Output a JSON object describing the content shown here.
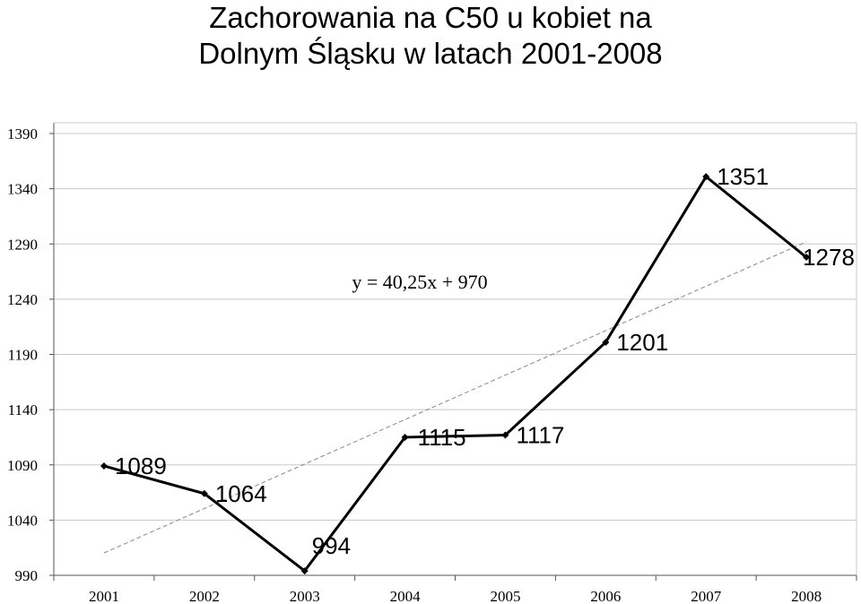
{
  "chart_data": {
    "type": "line",
    "title_lines": [
      "Zachorowania na C50 u kobiet na",
      "Dolnym Śląsku w latach 2001-2008"
    ],
    "categories": [
      "2001",
      "2002",
      "2003",
      "2004",
      "2005",
      "2006",
      "2007",
      "2008"
    ],
    "series": [
      {
        "values": [
          1089,
          1064,
          994,
          1115,
          1117,
          1201,
          1351,
          1278
        ],
        "color": "#000000"
      }
    ],
    "data_labels": [
      "1089",
      "1064",
      "994",
      "1115",
      "1117",
      "1201",
      "1351",
      "1278"
    ],
    "trendline": {
      "equation": "y = 40,25x + 970",
      "slope": 40.25,
      "intercept": 970,
      "style": "dashed",
      "color": "#888888"
    },
    "ylim": [
      990,
      1390
    ],
    "yticks": [
      990,
      1040,
      1090,
      1140,
      1190,
      1240,
      1290,
      1340,
      1390
    ],
    "ytick_labels": [
      "990",
      "1040",
      "1090",
      "1140",
      "1190",
      "1240",
      "1290",
      "1340",
      "1390"
    ],
    "grid": true,
    "legend": false
  }
}
